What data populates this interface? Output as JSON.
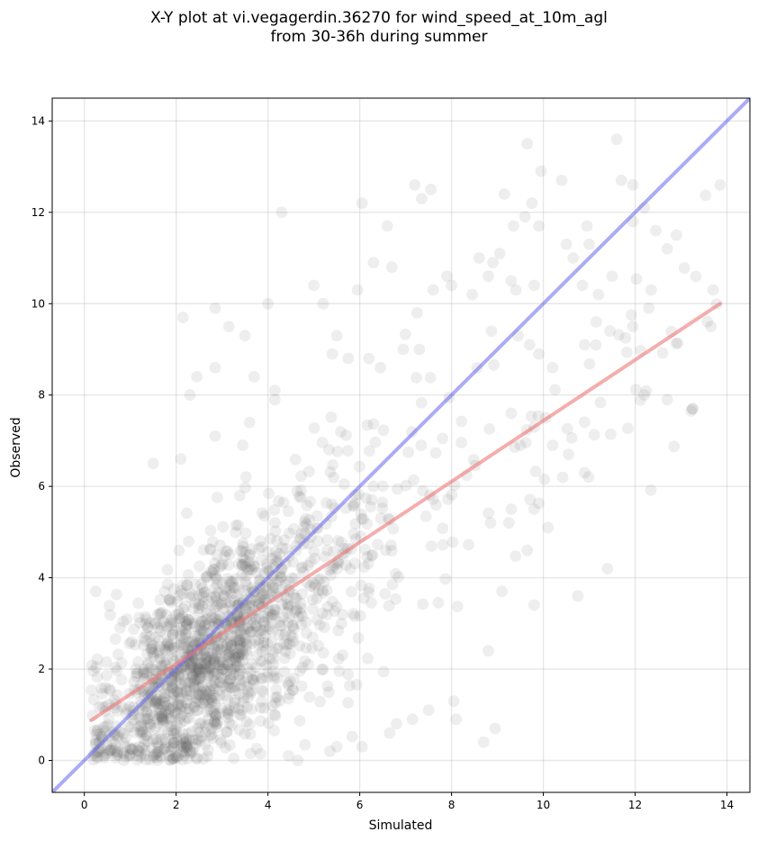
{
  "chart_data": {
    "type": "scatter",
    "title": "X-Y plot at vi.vegagerdin.36270 for wind_speed_at_10m_agl",
    "subtitle": "from 30-36h during summer",
    "xlabel": "Simulated",
    "ylabel": "Observed",
    "xlim": [
      -0.7,
      14.5
    ],
    "ylim": [
      -0.7,
      14.5
    ],
    "xticks": [
      0,
      2,
      4,
      6,
      8,
      10,
      12,
      14
    ],
    "yticks": [
      0,
      2,
      4,
      6,
      8,
      10,
      12,
      14
    ],
    "grid": true,
    "point_color": "#555555",
    "identity_line": {
      "color": "#6666ee",
      "x": [
        -0.7,
        14.5
      ],
      "y": [
        -0.7,
        14.5
      ]
    },
    "fit_line": {
      "color": "#ee7777",
      "x": [
        0.15,
        13.85
      ],
      "y": [
        0.88,
        10.0
      ]
    },
    "outliers": [
      [
        2.15,
        9.7
      ],
      [
        2.85,
        9.9
      ],
      [
        3.15,
        9.5
      ],
      [
        3.5,
        9.3
      ],
      [
        4.0,
        10.0
      ],
      [
        4.3,
        12.0
      ],
      [
        2.3,
        8.0
      ],
      [
        2.45,
        8.4
      ],
      [
        2.85,
        8.6
      ],
      [
        3.7,
        8.4
      ],
      [
        4.15,
        7.9
      ],
      [
        4.15,
        8.1
      ],
      [
        1.5,
        6.5
      ],
      [
        2.1,
        6.6
      ],
      [
        2.85,
        7.1
      ],
      [
        3.45,
        6.9
      ],
      [
        3.6,
        7.4
      ],
      [
        0.25,
        3.7
      ],
      [
        5.0,
        10.4
      ],
      [
        5.2,
        10.0
      ],
      [
        5.5,
        9.3
      ],
      [
        5.95,
        10.3
      ],
      [
        6.05,
        12.2
      ],
      [
        6.3,
        10.9
      ],
      [
        6.6,
        11.7
      ],
      [
        6.7,
        10.8
      ],
      [
        7.2,
        12.6
      ],
      [
        7.35,
        12.3
      ],
      [
        7.55,
        12.5
      ],
      [
        7.25,
        9.8
      ],
      [
        7.6,
        10.3
      ],
      [
        7.9,
        10.6
      ],
      [
        8.0,
        10.4
      ],
      [
        8.45,
        10.2
      ],
      [
        8.6,
        11.0
      ],
      [
        8.8,
        10.6
      ],
      [
        8.9,
        10.9
      ],
      [
        9.05,
        11.1
      ],
      [
        9.15,
        12.4
      ],
      [
        9.35,
        11.7
      ],
      [
        9.6,
        11.9
      ],
      [
        9.65,
        13.5
      ],
      [
        9.75,
        12.2
      ],
      [
        9.95,
        12.9
      ],
      [
        9.9,
        11.7
      ],
      [
        10.4,
        12.7
      ],
      [
        10.5,
        11.3
      ],
      [
        10.65,
        11.0
      ],
      [
        10.95,
        11.7
      ],
      [
        11.0,
        11.3
      ],
      [
        11.6,
        13.6
      ],
      [
        11.7,
        12.7
      ],
      [
        11.95,
        12.6
      ],
      [
        12.2,
        12.1
      ],
      [
        11.95,
        11.8
      ],
      [
        12.45,
        11.6
      ],
      [
        12.9,
        11.5
      ],
      [
        12.7,
        11.2
      ],
      [
        13.85,
        12.6
      ],
      [
        13.7,
        10.3
      ],
      [
        13.65,
        9.5
      ],
      [
        12.35,
        10.3
      ],
      [
        12.3,
        9.9
      ],
      [
        11.5,
        10.6
      ],
      [
        11.2,
        10.2
      ],
      [
        10.85,
        10.4
      ],
      [
        9.8,
        10.4
      ],
      [
        9.4,
        10.3
      ],
      [
        9.3,
        10.5
      ],
      [
        9.45,
        9.3
      ],
      [
        9.7,
        9.1
      ],
      [
        9.9,
        8.9
      ],
      [
        10.2,
        8.6
      ],
      [
        10.05,
        7.5
      ],
      [
        9.8,
        7.3
      ],
      [
        10.2,
        6.9
      ],
      [
        10.55,
        6.7
      ],
      [
        10.9,
        6.3
      ],
      [
        10.1,
        5.1
      ],
      [
        9.8,
        5.5
      ],
      [
        9.65,
        4.6
      ],
      [
        9.25,
        5.2
      ],
      [
        8.85,
        5.2
      ],
      [
        9.1,
        3.7
      ],
      [
        9.8,
        3.4
      ],
      [
        10.75,
        3.6
      ],
      [
        11.4,
        4.2
      ],
      [
        12.2,
        8.0
      ],
      [
        12.7,
        7.9
      ],
      [
        13.25,
        7.7
      ],
      [
        10.9,
        9.1
      ],
      [
        11.15,
        9.6
      ],
      [
        11.45,
        9.4
      ],
      [
        11.95,
        9.5
      ],
      [
        9.3,
        7.6
      ],
      [
        9.5,
        6.9
      ],
      [
        8.8,
        2.4
      ],
      [
        8.7,
        0.4
      ],
      [
        8.95,
        0.7
      ],
      [
        8.05,
        1.3
      ],
      [
        8.1,
        0.9
      ],
      [
        7.5,
        1.1
      ],
      [
        7.15,
        0.9
      ],
      [
        6.65,
        0.6
      ],
      [
        6.8,
        0.8
      ],
      [
        6.05,
        0.3
      ],
      [
        5.5,
        0.3
      ],
      [
        5.35,
        0.2
      ],
      [
        4.45,
        0.1
      ],
      [
        4.65,
        0.0
      ],
      [
        7.3,
        9.0
      ],
      [
        6.95,
        9.0
      ],
      [
        6.45,
        8.6
      ],
      [
        6.2,
        8.8
      ],
      [
        5.75,
        8.8
      ],
      [
        5.4,
        8.9
      ]
    ]
  }
}
